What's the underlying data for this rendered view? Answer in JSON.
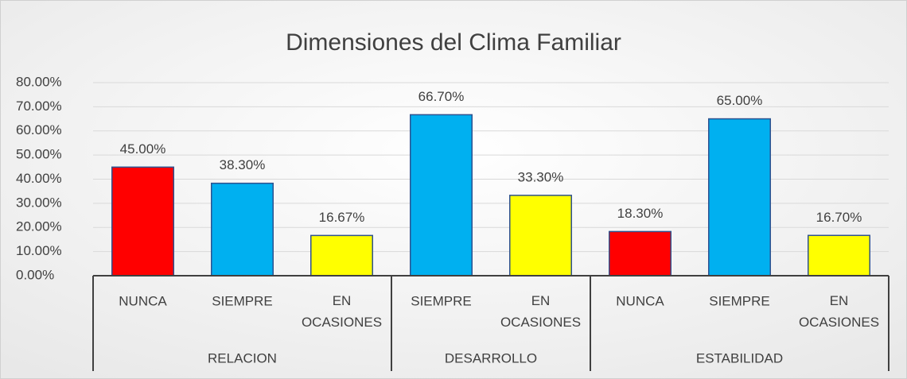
{
  "chart_data": {
    "type": "bar",
    "title": "Dimensiones del Clima Familiar",
    "groups": [
      {
        "name": "RELACION",
        "categories": [
          "NUNCA",
          "SIEMPRE",
          "EN OCASIONES"
        ],
        "values": [
          45,
          38.3,
          16.67
        ],
        "value_labels": [
          "45.00%",
          "38.30%",
          "16.67%"
        ],
        "colors": [
          "#ff0000",
          "#00b0f0",
          "#ffff00"
        ]
      },
      {
        "name": "DESARROLLO",
        "categories": [
          "SIEMPRE",
          "EN OCASIONES"
        ],
        "values": [
          66.7,
          33.3
        ],
        "value_labels": [
          "66.70%",
          "33.30%"
        ],
        "colors": [
          "#00b0f0",
          "#ffff00"
        ]
      },
      {
        "name": "ESTABILIDAD",
        "categories": [
          "NUNCA",
          "SIEMPRE",
          "EN OCASIONES"
        ],
        "values": [
          18.3,
          65,
          16.7
        ],
        "value_labels": [
          "18.30%",
          "65.00%",
          "16.70%"
        ],
        "colors": [
          "#ff0000",
          "#00b0f0",
          "#ffff00"
        ]
      }
    ],
    "ylim": [
      0,
      80
    ],
    "yticks": [
      {
        "value": 0,
        "label": "0.00%"
      },
      {
        "value": 10,
        "label": "10.00%"
      },
      {
        "value": 20,
        "label": "20.00%"
      },
      {
        "value": 30,
        "label": "30.00%"
      },
      {
        "value": 40,
        "label": "40.00%"
      },
      {
        "value": 50,
        "label": "50.00%"
      },
      {
        "value": 60,
        "label": "60.00%"
      },
      {
        "value": 70,
        "label": "70.00%"
      },
      {
        "value": 80,
        "label": "80.00%"
      }
    ],
    "grid": true
  }
}
